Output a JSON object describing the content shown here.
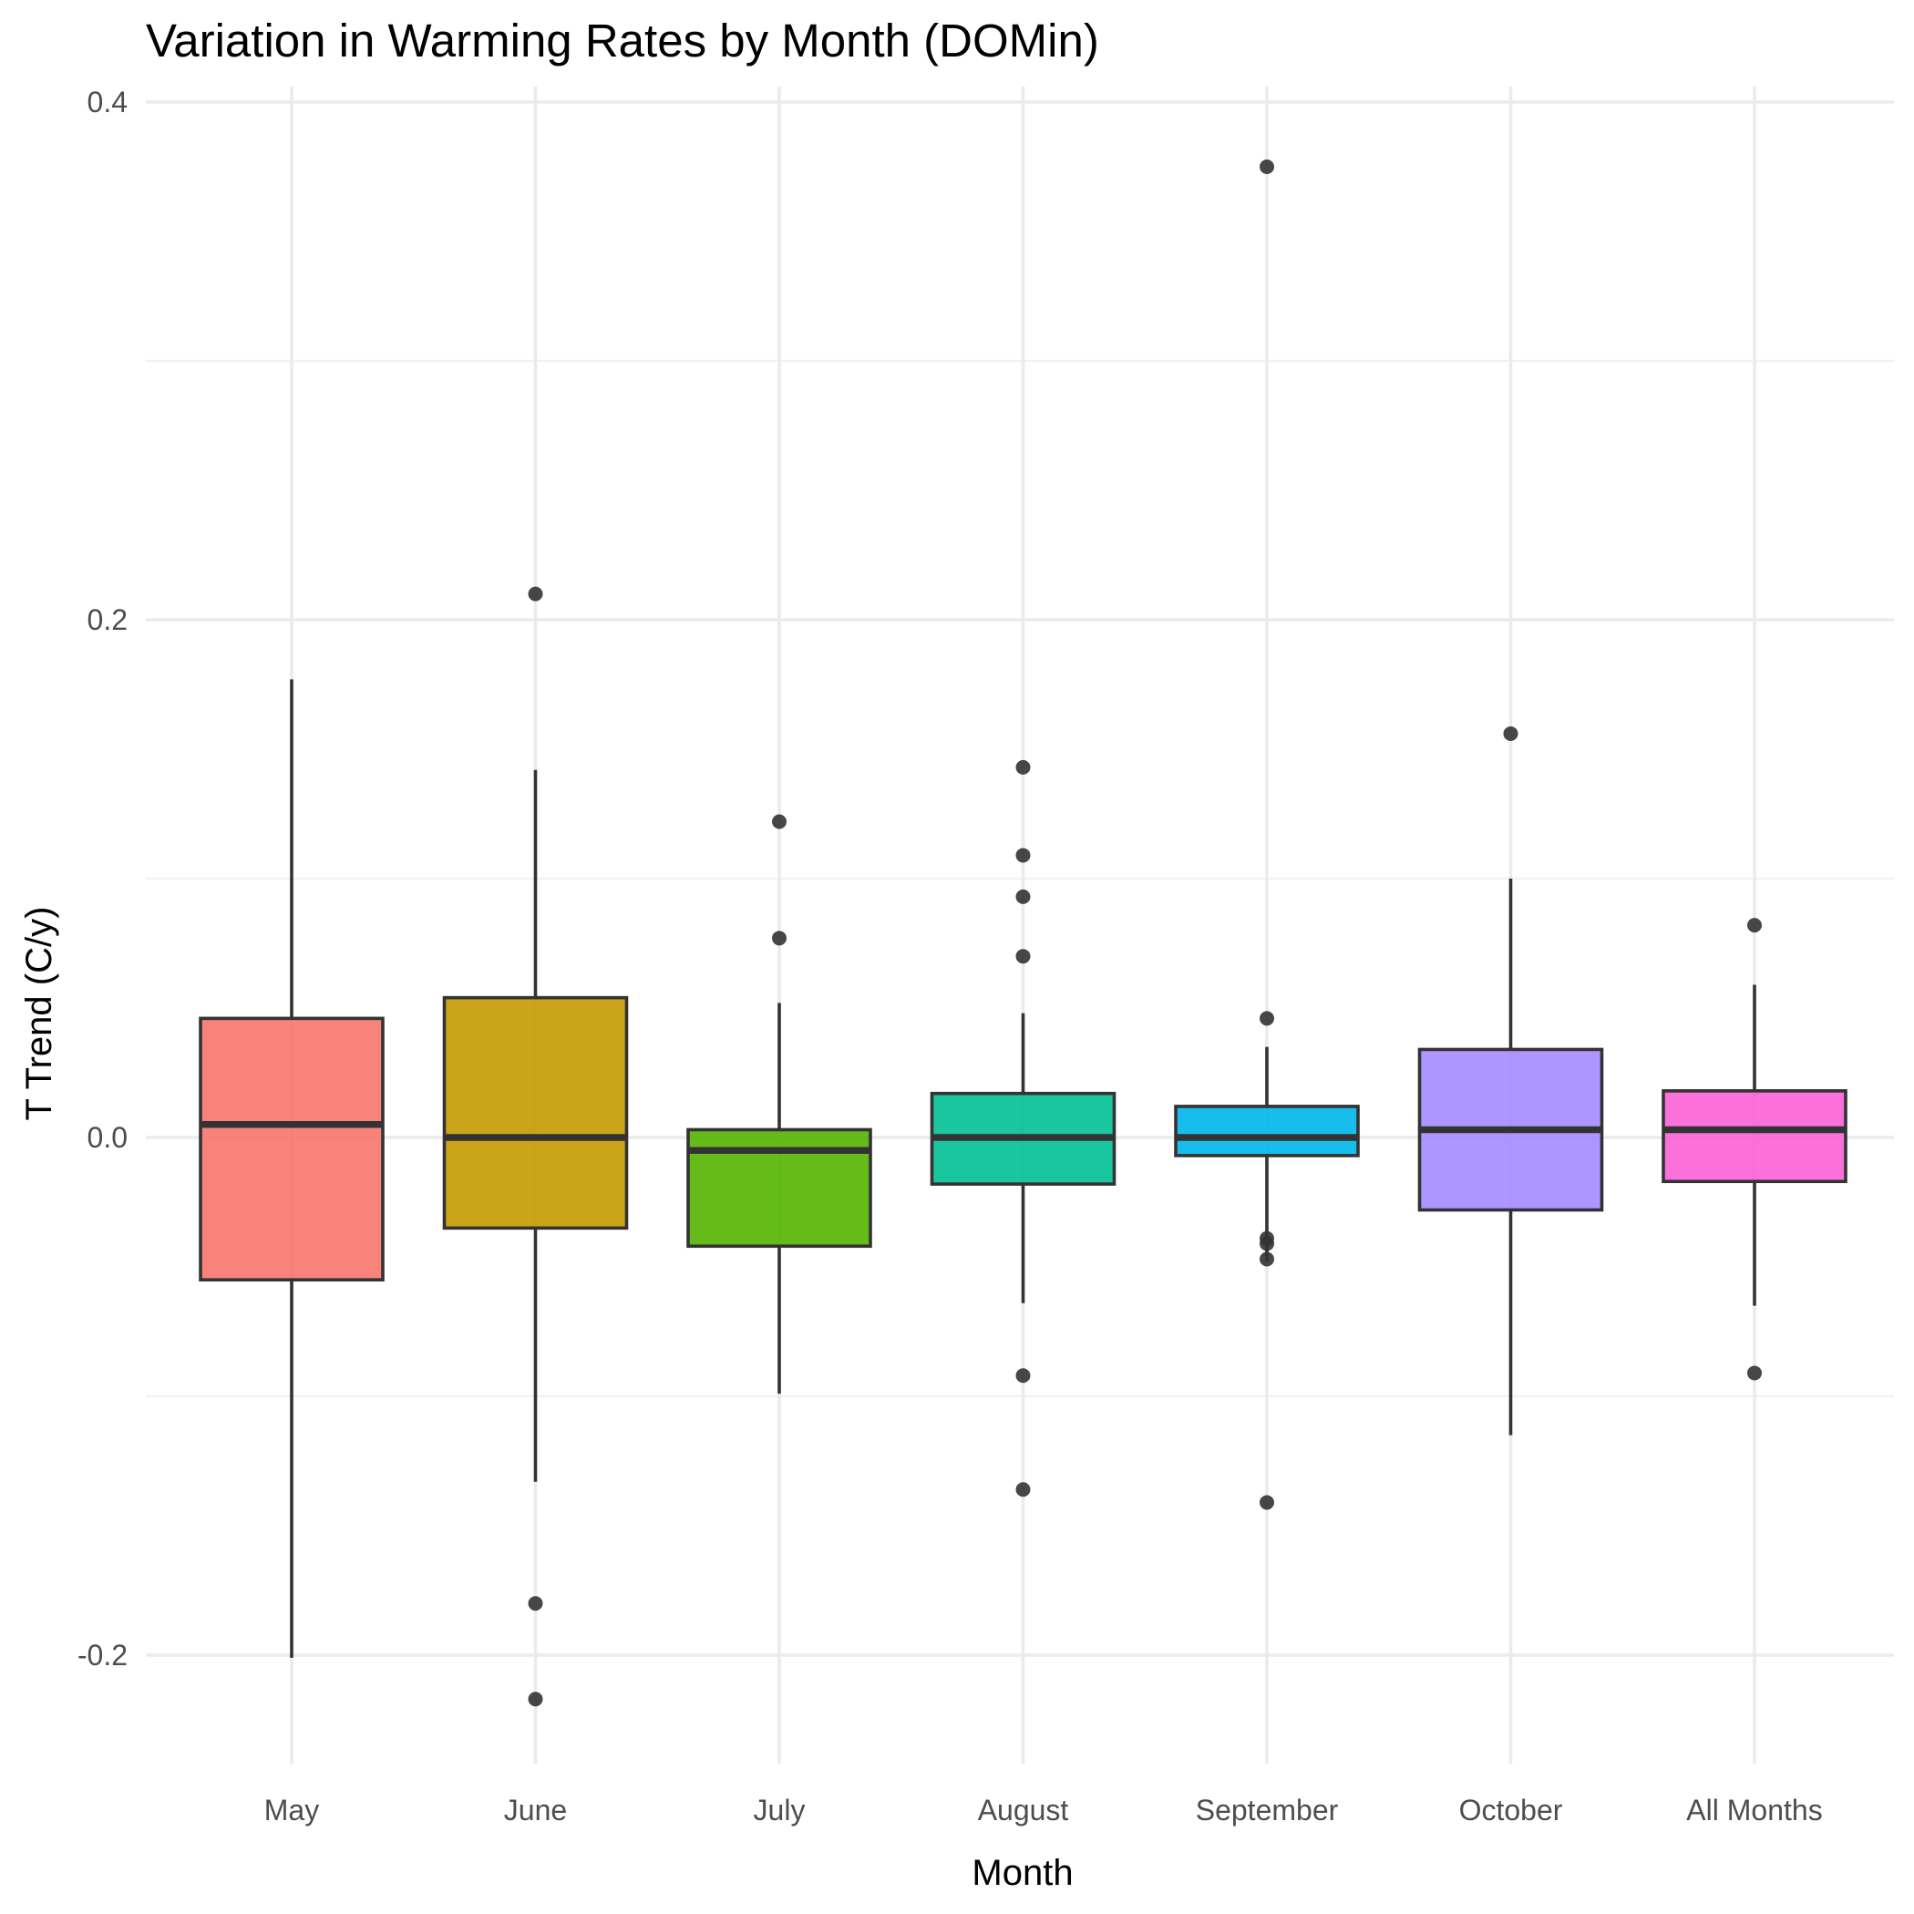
{
  "chart_data": {
    "type": "boxplot",
    "title": "Variation in Warming Rates by Month (DOMin)",
    "xlabel": "Month",
    "ylabel": "T Trend (C/y)",
    "ylim": [
      -0.245,
      0.405
    ],
    "yticks": [
      -0.2,
      0.0,
      0.2,
      0.4
    ],
    "ytick_labels": [
      "-0.2",
      "0.0",
      "0.2",
      "0.4"
    ],
    "y_minor_ticks": [
      -0.1,
      0.1,
      0.3
    ],
    "grid": true,
    "legend": "none",
    "categories": [
      "May",
      "June",
      "July",
      "August",
      "September",
      "October",
      "All Months"
    ],
    "boxes": [
      {
        "category": "May",
        "color": "#F8766D",
        "lower_whisker": -0.201,
        "q1": -0.055,
        "median": 0.005,
        "q3": 0.046,
        "upper_whisker": 0.177,
        "outliers": []
      },
      {
        "category": "June",
        "color": "#C49A00",
        "lower_whisker": -0.133,
        "q1": -0.035,
        "median": 0.0,
        "q3": 0.054,
        "upper_whisker": 0.142,
        "outliers": [
          0.21,
          -0.18,
          -0.217
        ]
      },
      {
        "category": "July",
        "color": "#53B400",
        "lower_whisker": -0.099,
        "q1": -0.042,
        "median": -0.005,
        "q3": 0.003,
        "upper_whisker": 0.052,
        "outliers": [
          0.122,
          0.077
        ]
      },
      {
        "category": "August",
        "color": "#00C094",
        "lower_whisker": -0.064,
        "q1": -0.018,
        "median": 0.0,
        "q3": 0.017,
        "upper_whisker": 0.048,
        "outliers": [
          0.143,
          0.109,
          0.093,
          0.07,
          -0.092,
          -0.136
        ]
      },
      {
        "category": "September",
        "color": "#00B6EB",
        "lower_whisker": -0.048,
        "q1": -0.007,
        "median": 0.0,
        "q3": 0.012,
        "upper_whisker": 0.035,
        "outliers": [
          0.375,
          0.046,
          -0.039,
          -0.041,
          -0.047,
          -0.141
        ]
      },
      {
        "category": "October",
        "color": "#A58AFF",
        "lower_whisker": -0.115,
        "q1": -0.028,
        "median": 0.003,
        "q3": 0.034,
        "upper_whisker": 0.1,
        "outliers": [
          0.156
        ]
      },
      {
        "category": "All Months",
        "color": "#FB61D7",
        "lower_whisker": -0.065,
        "q1": -0.017,
        "median": 0.003,
        "q3": 0.018,
        "upper_whisker": 0.059,
        "outliers": [
          0.082,
          -0.091
        ]
      }
    ]
  }
}
